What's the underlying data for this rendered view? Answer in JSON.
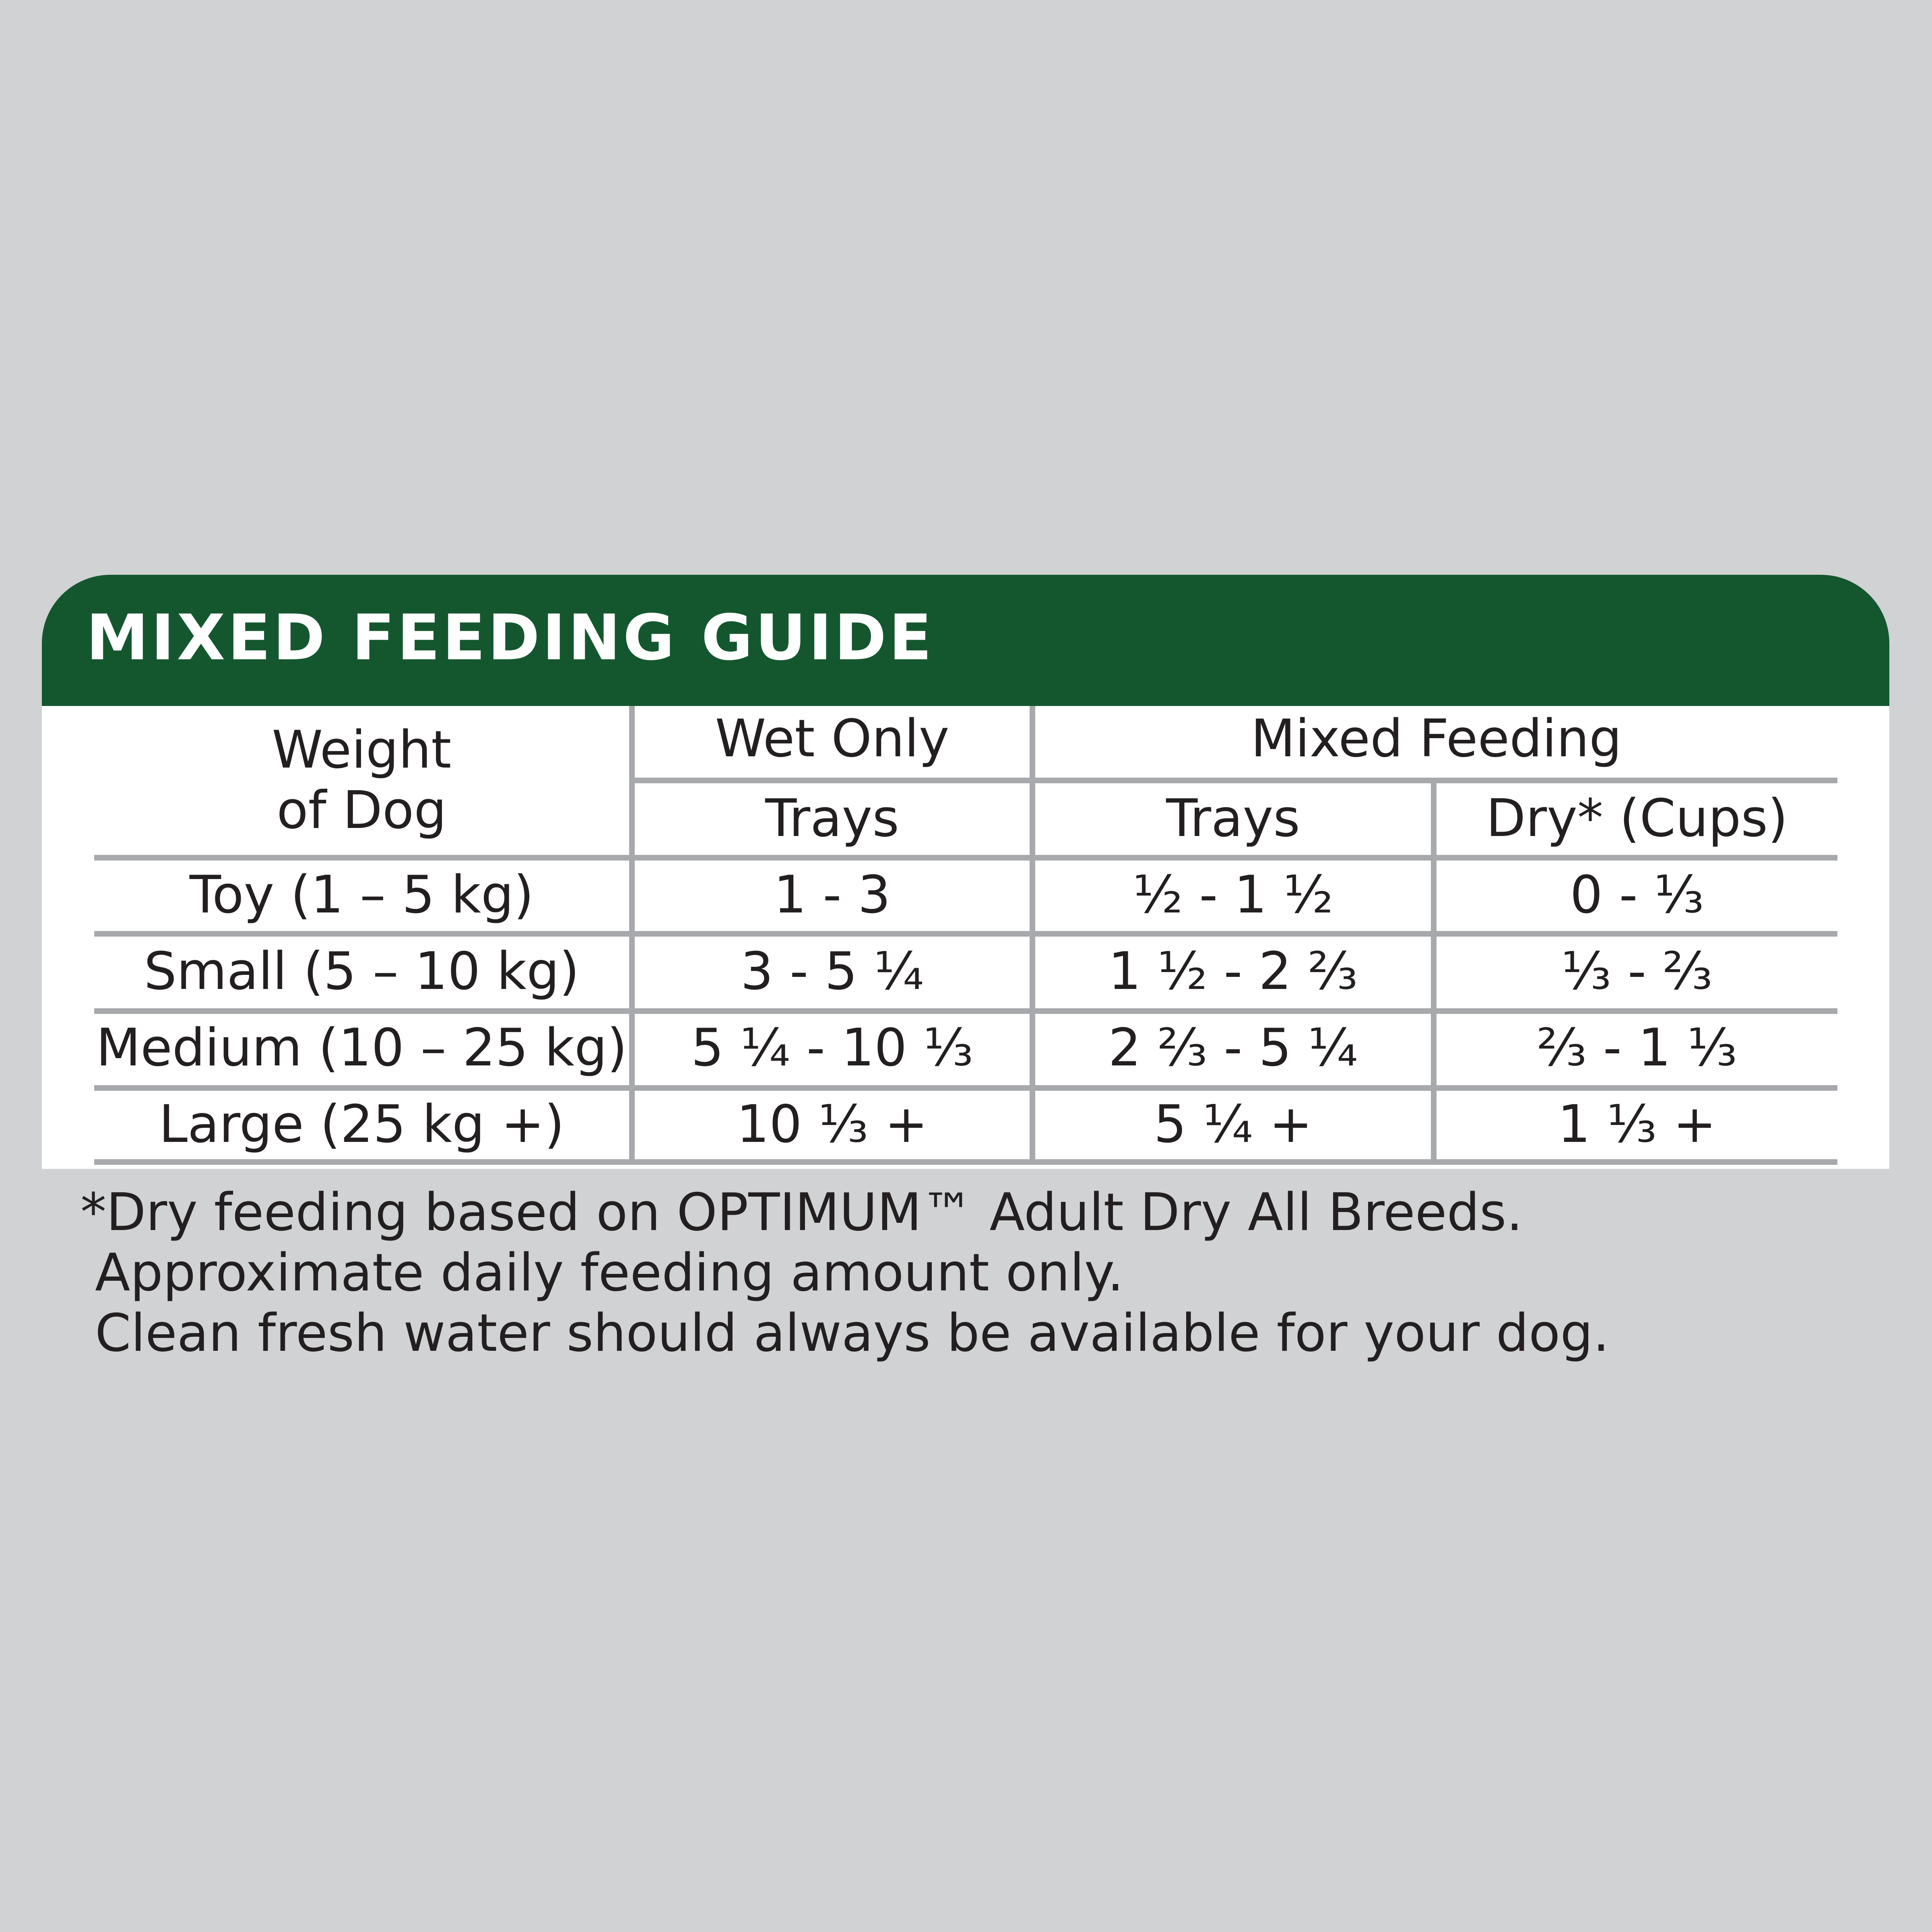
{
  "title": "MIXED FEEDING GUIDE",
  "table": {
    "headers": {
      "weight": [
        "Weight",
        "of Dog"
      ],
      "wet_only": "Wet Only",
      "mixed_feeding": "Mixed Feeding",
      "wet_trays": "Trays",
      "mixed_trays": "Trays",
      "mixed_dry": "Dry* (Cups)"
    },
    "rows": [
      {
        "weight": "Toy (1 – 5 kg)",
        "wet_trays": "1 - 3",
        "mixed_trays": "½ - 1 ½",
        "mixed_dry": "0 - ⅓"
      },
      {
        "weight": "Small (5 – 10 kg)",
        "wet_trays": "3 - 5 ¼",
        "mixed_trays": "1 ½ - 2 ⅔",
        "mixed_dry": "⅓ - ⅔"
      },
      {
        "weight": "Medium (10 – 25 kg)",
        "wet_trays": "5 ¼ - 10 ⅓",
        "mixed_trays": "2 ⅔ - 5 ¼",
        "mixed_dry": "⅔ - 1 ⅓"
      },
      {
        "weight": "Large (25 kg +)",
        "wet_trays": "10 ⅓ +",
        "mixed_trays": "5 ¼ +",
        "mixed_dry": "1 ⅓ +"
      }
    ]
  },
  "notes": [
    "*Dry feeding based on OPTIMUM™ Adult Dry All Breeds.",
    "Approximate daily feeding amount only.",
    "Clean fresh water should always be available for your dog."
  ],
  "colors": {
    "background": "#d0d2d3",
    "header": "#14572f",
    "header_text": "#ffffff",
    "lines": "#a7a9ac",
    "text": "#231f20"
  }
}
